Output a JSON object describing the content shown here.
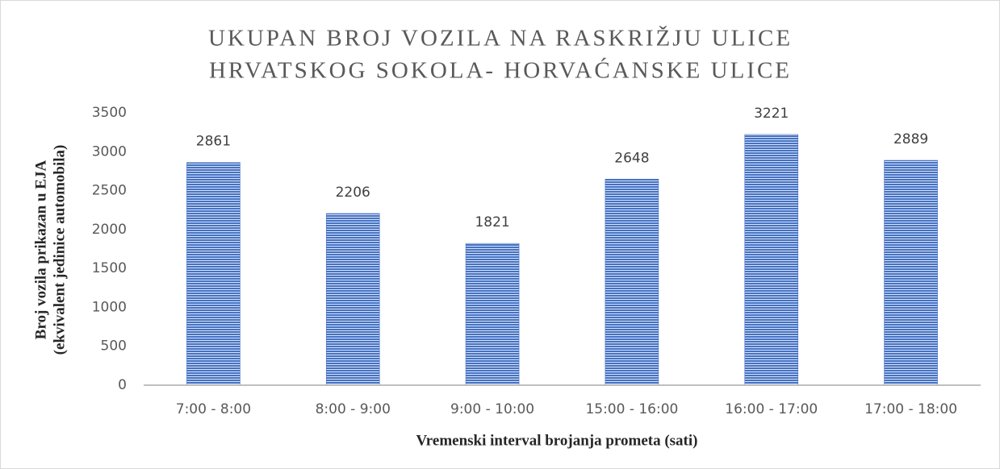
{
  "chart_data": {
    "type": "bar",
    "title": [
      "UKUPAN BROJ VOZILA NA RASKRIŽJU ULICE",
      "HRVATSKOG SOKOLA- HORVAĆANSKE ULICE"
    ],
    "x_label": "Vremenski interval brojanja prometa (sati)",
    "y_label": [
      "Broj vozila prikazan u EJA",
      "(ekvivalent jedinice automobila)"
    ],
    "categories": [
      "7:00 - 8:00",
      "8:00 - 9:00",
      "9:00 - 10:00",
      "15:00 - 16:00",
      "16:00 - 17:00",
      "17:00 - 18:00"
    ],
    "values": [
      2861,
      2206,
      1821,
      2648,
      3221,
      2889
    ],
    "color": "#4472c4",
    "ylim": [
      0,
      3500
    ],
    "yticks": [
      0,
      500,
      1000,
      1500,
      2000,
      2500,
      3000,
      3500
    ],
    "grid": false
  }
}
